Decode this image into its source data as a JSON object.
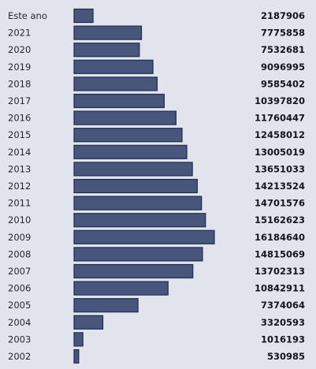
{
  "chart_data": {
    "type": "bar",
    "orientation": "horizontal",
    "categories": [
      "Este ano",
      "2021",
      "2020",
      "2019",
      "2018",
      "2017",
      "2016",
      "2015",
      "2014",
      "2013",
      "2012",
      "2011",
      "2010",
      "2009",
      "2008",
      "2007",
      "2006",
      "2005",
      "2004",
      "2003",
      "2002"
    ],
    "values": [
      2187906,
      7775858,
      7532681,
      9096995,
      9585402,
      10397820,
      11760447,
      12458012,
      13005019,
      13651033,
      14213524,
      14701576,
      15162623,
      16184640,
      14815069,
      13702313,
      10842911,
      7374064,
      3320593,
      1016193,
      530985
    ],
    "value_labels": [
      "2187906",
      "7775858",
      "7532681",
      "9096995",
      "9585402",
      "10397820",
      "11760447",
      "12458012",
      "13005019",
      "13651033",
      "14213524",
      "14701576",
      "15162623",
      "16184640",
      "14815069",
      "13702313",
      "10842911",
      "7374064",
      "3320593",
      "1016193",
      "530985"
    ],
    "title": "",
    "xlabel": "",
    "ylabel": "",
    "grid": false,
    "legend": "none",
    "bar_color": "#47567a",
    "bar_border_color": "#1b2d52",
    "background_color": "#e1e4ed"
  }
}
